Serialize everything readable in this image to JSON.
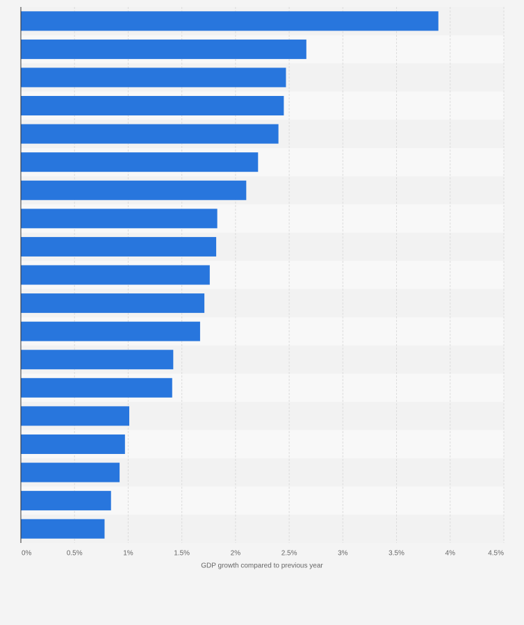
{
  "chart_data": {
    "type": "bar",
    "orientation": "horizontal",
    "xlabel": "GDP growth compared to previous year",
    "categories": [
      null,
      null,
      null,
      null,
      null,
      null,
      null,
      null,
      null,
      null,
      null,
      null,
      null,
      null,
      null,
      null,
      null,
      null,
      null
    ],
    "values": [
      3.89,
      2.66,
      2.47,
      2.45,
      2.4,
      2.21,
      2.1,
      1.83,
      1.82,
      1.76,
      1.71,
      1.67,
      1.42,
      1.41,
      1.01,
      0.97,
      0.92,
      0.84,
      0.78
    ],
    "color": "#2876dd",
    "xlim": [
      0,
      4.5
    ],
    "xticks": [
      {
        "value": 0,
        "label": "0%"
      },
      {
        "value": 0.5,
        "label": "0.5%"
      },
      {
        "value": 1,
        "label": "1%"
      },
      {
        "value": 1.5,
        "label": "1.5%"
      },
      {
        "value": 2,
        "label": "2%"
      },
      {
        "value": 2.5,
        "label": "2.5%"
      },
      {
        "value": 3,
        "label": "3%"
      },
      {
        "value": 3.5,
        "label": "3.5%"
      },
      {
        "value": 4,
        "label": "4%"
      },
      {
        "value": 4.5,
        "label": "4.5%"
      }
    ],
    "grid": true
  }
}
